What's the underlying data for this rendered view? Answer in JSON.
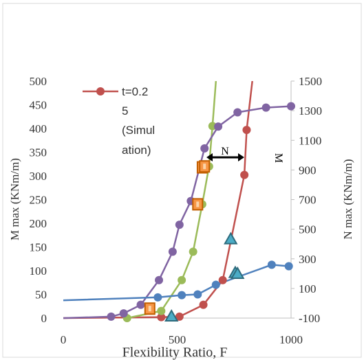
{
  "chart_data": {
    "type": "scatter",
    "xlabel": "Flexibility Ratio, F",
    "ylabel_left": "M max (KNm/m)",
    "ylabel_right": "N max (KNm/m)",
    "xlim": [
      0,
      1000
    ],
    "ylim_left": [
      0,
      500
    ],
    "ylim_right": [
      -100,
      1500
    ],
    "x_ticks": [
      "0",
      "500",
      "1000"
    ],
    "x_tick_values": [
      0,
      500,
      1000
    ],
    "y_left_ticks": [
      "0",
      "50",
      "100",
      "150",
      "200",
      "250",
      "300",
      "350",
      "400",
      "450",
      "500"
    ],
    "y_left_tick_values": [
      0,
      50,
      100,
      150,
      200,
      250,
      300,
      350,
      400,
      450,
      500
    ],
    "y_right_ticks": [
      "-100",
      "100",
      "300",
      "500",
      "700",
      "900",
      "1100",
      "1300",
      "1500"
    ],
    "y_right_tick_values": [
      -100,
      100,
      300,
      500,
      700,
      900,
      1100,
      1300,
      1500
    ],
    "legend": {
      "position": "top-left",
      "label_lines": [
        "t=0.2",
        "5",
        "(Simul",
        "ation)"
      ]
    },
    "annotations": {
      "n_label": "N",
      "m_label": "M"
    },
    "series": [
      {
        "color": "#c0504d",
        "marker": "circle",
        "axis": "left",
        "x": [
          0,
          430,
          510,
          615,
          700,
          795,
          805
        ],
        "y": [
          0,
          2,
          3,
          28,
          80,
          302,
          397
        ],
        "curve_top": [
          830,
          500
        ]
      },
      {
        "color": "#9bbb59",
        "marker": "circle",
        "axis": "left",
        "x": [
          280,
          430,
          520,
          570,
          610,
          640,
          655
        ],
        "y": [
          0,
          15,
          80,
          140,
          240,
          320,
          405
        ],
        "curve_top": [
          670,
          500
        ]
      },
      {
        "color": "#8064a2",
        "marker": "circle",
        "axis": "left",
        "x": [
          0,
          210,
          265,
          340,
          420,
          480,
          510,
          560,
          620,
          680,
          765,
          890,
          1000
        ],
        "y": [
          0,
          3,
          10,
          28,
          80,
          140,
          197,
          247,
          358,
          404,
          434,
          444,
          447
        ]
      },
      {
        "color": "#4f81bd",
        "marker": "circle",
        "axis": "right",
        "x": [
          0,
          415,
          520,
          590,
          670,
          915,
          990
        ],
        "y": [
          20,
          40,
          55,
          60,
          125,
          260,
          250
        ]
      },
      {
        "color": "#4bacc6",
        "marker": "triangle",
        "axis": "left",
        "x": [
          475,
          735,
          755,
          765
        ],
        "y": [
          5,
          168,
          97,
          95
        ]
      },
      {
        "color": "#f79646",
        "marker": "square",
        "axis": "left",
        "x": [
          380,
          590,
          610,
          620
        ],
        "y": [
          20,
          240,
          318,
          320
        ]
      }
    ]
  }
}
